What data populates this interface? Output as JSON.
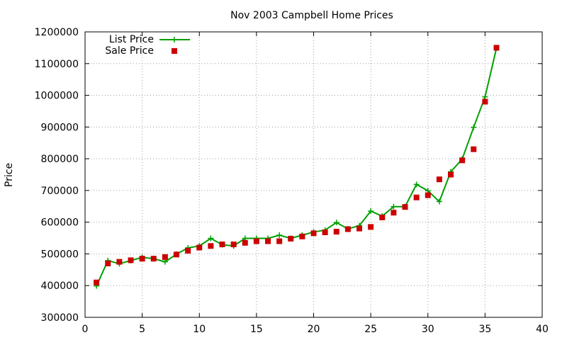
{
  "chart_data": {
    "type": "line",
    "title": "Nov 2003 Campbell Home Prices",
    "xlabel": "",
    "ylabel": "Price",
    "xlim": [
      0,
      40
    ],
    "ylim": [
      300000,
      1200000
    ],
    "xticks": [
      0,
      5,
      10,
      15,
      20,
      25,
      30,
      35,
      40
    ],
    "yticks": [
      300000,
      400000,
      500000,
      600000,
      700000,
      800000,
      900000,
      1000000,
      1100000,
      1200000
    ],
    "grid": true,
    "legend_position": "top-left",
    "x": [
      1,
      2,
      3,
      4,
      5,
      6,
      7,
      8,
      9,
      10,
      11,
      12,
      13,
      14,
      15,
      16,
      17,
      18,
      19,
      20,
      21,
      22,
      23,
      24,
      25,
      26,
      27,
      28,
      29,
      30,
      31,
      32,
      33,
      34,
      35,
      36
    ],
    "series": [
      {
        "name": "List Price",
        "style": "line+cross",
        "color": "#00a000",
        "values": [
          399000,
          479000,
          469000,
          479000,
          489000,
          485000,
          475000,
          499000,
          519000,
          525000,
          549000,
          529000,
          525000,
          549000,
          549000,
          549000,
          559000,
          549000,
          559000,
          569000,
          575000,
          599000,
          579000,
          589000,
          635000,
          619000,
          649000,
          649000,
          719000,
          699000,
          665000,
          759000,
          799000,
          899000,
          995000,
          1149000
        ]
      },
      {
        "name": "Sale Price",
        "style": "square",
        "color": "#cc0000",
        "values": [
          410000,
          470000,
          475000,
          480000,
          485000,
          485000,
          490000,
          498000,
          510000,
          520000,
          525000,
          530000,
          530000,
          535000,
          540000,
          540000,
          540000,
          548000,
          555000,
          565000,
          568000,
          570000,
          578000,
          580000,
          585000,
          615000,
          630000,
          648000,
          678000,
          685000,
          735000,
          750000,
          795000,
          830000,
          980000,
          1150000
        ]
      }
    ]
  }
}
